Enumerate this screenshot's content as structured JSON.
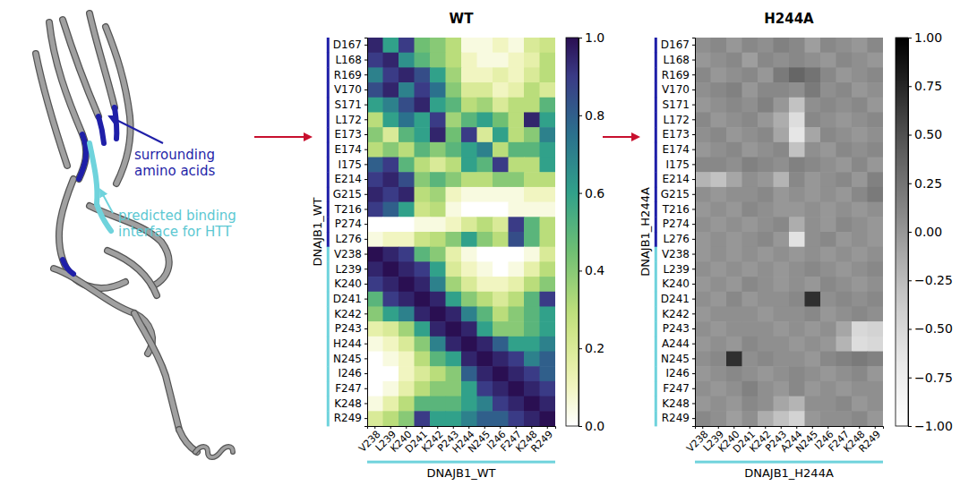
{
  "structure": {
    "labels": [
      {
        "lines": [
          "surrounding",
          "amino acids"
        ],
        "color": "#1f1fa8"
      },
      {
        "lines": [
          "predicted binding",
          "interface for HTT"
        ],
        "color": "#5cc8d2"
      }
    ]
  },
  "chart_data": [
    {
      "type": "heatmap",
      "title": "WT",
      "color": "viridis_r",
      "x_label": "DNAJB1_WT",
      "y_label": "DNAJB1_WT",
      "x": [
        "V238",
        "L239",
        "K240",
        "D241",
        "K242",
        "P243",
        "H244",
        "N245",
        "I246",
        "F247",
        "K248",
        "R249"
      ],
      "y": [
        "D167",
        "L168",
        "R169",
        "V170",
        "S171",
        "L172",
        "E173",
        "E174",
        "I175",
        "E214",
        "G215",
        "T216",
        "P274",
        "L276",
        "V238",
        "L239",
        "K240",
        "D241",
        "K242",
        "P243",
        "H244",
        "N245",
        "I246",
        "F247",
        "K248",
        "R249"
      ],
      "values": [
        [
          0.95,
          0.6,
          0.9,
          0.45,
          0.4,
          0.3,
          0.05,
          0.05,
          0.1,
          0.05,
          0.2,
          0.25
        ],
        [
          0.9,
          0.95,
          0.65,
          0.5,
          0.4,
          0.3,
          0.1,
          0.05,
          0.05,
          0.1,
          0.15,
          0.3
        ],
        [
          0.7,
          0.9,
          0.95,
          0.85,
          0.6,
          0.35,
          0.1,
          0.1,
          0.15,
          0.1,
          0.2,
          0.3
        ],
        [
          0.85,
          0.95,
          0.7,
          0.9,
          0.75,
          0.4,
          0.2,
          0.2,
          0.1,
          0.15,
          0.3,
          0.2
        ],
        [
          0.6,
          0.7,
          0.85,
          0.95,
          0.6,
          0.5,
          0.3,
          0.35,
          0.2,
          0.3,
          0.3,
          0.5
        ],
        [
          0.3,
          0.6,
          0.75,
          0.6,
          0.9,
          0.35,
          0.5,
          0.6,
          0.45,
          0.3,
          0.95,
          0.6
        ],
        [
          0.4,
          0.2,
          0.5,
          0.6,
          0.95,
          0.45,
          0.9,
          0.2,
          0.6,
          0.3,
          0.4,
          0.7
        ],
        [
          0.3,
          0.4,
          0.3,
          0.5,
          0.4,
          0.5,
          0.6,
          0.7,
          0.3,
          0.5,
          0.5,
          0.6
        ],
        [
          0.8,
          0.9,
          0.5,
          0.3,
          0.2,
          0.3,
          0.6,
          0.5,
          0.9,
          0.3,
          0.3,
          0.6
        ],
        [
          0.9,
          0.95,
          0.85,
          0.4,
          0.5,
          0.4,
          0.3,
          0.3,
          0.4,
          0.4,
          0.3,
          0.3
        ],
        [
          0.95,
          0.9,
          0.95,
          0.3,
          0.35,
          0.1,
          0.05,
          0.05,
          0.05,
          0.05,
          0.1,
          0.1
        ],
        [
          0.9,
          0.8,
          0.6,
          0.25,
          0.3,
          0.05,
          0.0,
          0.0,
          0.0,
          0.05,
          0.05,
          0.05
        ],
        [
          0.0,
          0.0,
          0.0,
          0.05,
          0.05,
          0.1,
          0.2,
          0.3,
          0.2,
          0.9,
          0.5,
          0.3
        ],
        [
          0.05,
          0.1,
          0.1,
          0.25,
          0.3,
          0.4,
          0.6,
          0.4,
          0.3,
          0.85,
          0.5,
          0.3
        ],
        [
          1.0,
          0.95,
          0.9,
          0.5,
          0.4,
          0.15,
          0.05,
          0.0,
          0.0,
          0.0,
          0.05,
          0.2
        ],
        [
          0.95,
          1.0,
          0.95,
          0.9,
          0.6,
          0.2,
          0.1,
          0.05,
          0.0,
          0.05,
          0.15,
          0.3
        ],
        [
          0.9,
          0.95,
          1.0,
          0.95,
          0.7,
          0.35,
          0.2,
          0.1,
          0.1,
          0.15,
          0.3,
          0.4
        ],
        [
          0.5,
          0.9,
          0.95,
          1.0,
          0.95,
          0.6,
          0.4,
          0.3,
          0.2,
          0.3,
          0.5,
          0.9
        ],
        [
          0.4,
          0.6,
          0.7,
          0.95,
          1.0,
          0.95,
          0.7,
          0.5,
          0.3,
          0.4,
          0.5,
          0.6
        ],
        [
          0.15,
          0.2,
          0.35,
          0.6,
          0.95,
          1.0,
          0.95,
          0.6,
          0.4,
          0.4,
          0.5,
          0.6
        ],
        [
          0.05,
          0.1,
          0.2,
          0.4,
          0.7,
          0.95,
          1.0,
          0.95,
          0.8,
          0.6,
          0.6,
          0.7
        ],
        [
          0.0,
          0.05,
          0.1,
          0.3,
          0.5,
          0.6,
          0.95,
          1.0,
          0.95,
          0.9,
          0.7,
          0.8
        ],
        [
          0.0,
          0.0,
          0.1,
          0.2,
          0.3,
          0.4,
          0.8,
          0.95,
          1.0,
          0.95,
          0.9,
          0.8
        ],
        [
          0.0,
          0.05,
          0.15,
          0.3,
          0.4,
          0.4,
          0.6,
          0.9,
          0.95,
          1.0,
          0.95,
          0.9
        ],
        [
          0.05,
          0.15,
          0.3,
          0.5,
          0.5,
          0.5,
          0.6,
          0.7,
          0.9,
          0.95,
          1.0,
          0.95
        ],
        [
          0.2,
          0.3,
          0.4,
          0.9,
          0.6,
          0.6,
          0.7,
          0.8,
          0.8,
          0.9,
          0.95,
          1.0
        ]
      ],
      "zlim": [
        0,
        1
      ],
      "zticks": [
        {
          "value": 0,
          "label": "0.0"
        },
        {
          "value": 0.2,
          "label": "0.2"
        },
        {
          "value": 0.4,
          "label": "0.4"
        },
        {
          "value": 0.6,
          "label": "0.6"
        },
        {
          "value": 0.8,
          "label": "0.8"
        },
        {
          "value": 1,
          "label": "1.0"
        }
      ]
    },
    {
      "type": "heatmap",
      "title": "H244A",
      "color": "Greys",
      "x_label": "DNAJB1_H244A",
      "y_label": "DNAJB1_H244A",
      "x": [
        "V238",
        "L239",
        "K240",
        "D241",
        "K242",
        "P243",
        "A244",
        "N245",
        "I246",
        "F247",
        "K248",
        "R249"
      ],
      "y": [
        "D167",
        "L168",
        "R169",
        "V170",
        "S171",
        "L172",
        "E173",
        "E174",
        "I175",
        "E214",
        "G215",
        "T216",
        "P274",
        "L276",
        "V238",
        "L239",
        "K240",
        "D241",
        "K242",
        "P243",
        "A244",
        "N245",
        "I246",
        "F247",
        "K248",
        "R249"
      ],
      "values": [
        [
          0.05,
          0.1,
          0,
          0.1,
          0.05,
          0.15,
          0.1,
          -0.05,
          0.1,
          0.05,
          0,
          0.1
        ],
        [
          0,
          0.05,
          0.1,
          -0.05,
          0.1,
          0.05,
          0.1,
          0.05,
          0,
          0.1,
          0.05,
          0
        ],
        [
          0.1,
          0,
          0.05,
          0.1,
          0,
          0.2,
          0.35,
          0.25,
          0.1,
          0,
          0.05,
          0.1
        ],
        [
          0.05,
          0.1,
          0.15,
          0,
          0.1,
          0.1,
          0.05,
          0.2,
          0.05,
          0.1,
          0,
          0.05
        ],
        [
          0,
          0.05,
          0.1,
          0.05,
          0.15,
          0,
          -0.3,
          0.05,
          0.1,
          0.05,
          0.1,
          0
        ],
        [
          0.1,
          0,
          0.05,
          0.1,
          0,
          -0.15,
          -0.55,
          0.1,
          0.05,
          0,
          0.05,
          0.1
        ],
        [
          0.05,
          0.1,
          0,
          0.05,
          0.1,
          -0.1,
          -0.65,
          -0.1,
          0.1,
          0.05,
          0,
          0.05
        ],
        [
          0,
          0.05,
          0.1,
          0,
          0.05,
          0.1,
          -0.3,
          0.05,
          0,
          0.1,
          0.05,
          0.1
        ],
        [
          0.1,
          0.1,
          0.05,
          0.15,
          0.1,
          0.05,
          0.15,
          0.1,
          0.05,
          0,
          0.1,
          0
        ],
        [
          -0.2,
          -0.3,
          -0.1,
          0.05,
          0,
          -0.2,
          0.1,
          0,
          0.05,
          0.1,
          0,
          0.15
        ],
        [
          0.05,
          0,
          0.05,
          0.05,
          0.1,
          0,
          0.05,
          0,
          0.05,
          0,
          0.1,
          0.2
        ],
        [
          0,
          0.05,
          0,
          0.1,
          0.05,
          0,
          0,
          0.05,
          0,
          0.05,
          0,
          0.05
        ],
        [
          0.05,
          0,
          0.05,
          0,
          0.05,
          0.1,
          -0.15,
          0.05,
          0,
          0.1,
          0.05,
          0
        ],
        [
          0,
          0.05,
          0,
          0.05,
          0.1,
          0,
          -0.6,
          0.05,
          0.1,
          0,
          0.05,
          0
        ],
        [
          0,
          0.05,
          0,
          0.05,
          0,
          0.05,
          0,
          0.05,
          0,
          0.05,
          0,
          0.05
        ],
        [
          0.05,
          0,
          0.05,
          0,
          0.05,
          0,
          0.05,
          0.1,
          0.05,
          0,
          0.05,
          0.1
        ],
        [
          0,
          0.05,
          0,
          0.1,
          0.05,
          0,
          0.05,
          0,
          0.1,
          0.05,
          0,
          0.05
        ],
        [
          0.05,
          0,
          0.1,
          0,
          0.05,
          0.05,
          0.1,
          0.7,
          0.05,
          0.1,
          0.05,
          0.1
        ],
        [
          0,
          0.05,
          0.05,
          0.05,
          0,
          0.05,
          0.05,
          0.1,
          0,
          0.05,
          0.1,
          0.05
        ],
        [
          0.05,
          0,
          0.05,
          0.05,
          0.05,
          0,
          0.05,
          0,
          0.05,
          -0.1,
          -0.5,
          -0.45
        ],
        [
          0,
          0.05,
          0,
          0.1,
          0.05,
          0.05,
          0,
          0.05,
          0,
          -0.2,
          -0.55,
          -0.5
        ],
        [
          0.05,
          0.1,
          0.7,
          0.05,
          0.1,
          0.05,
          0.05,
          0,
          0.1,
          0.15,
          0.2,
          0.15
        ],
        [
          0,
          0.05,
          0.1,
          0.05,
          0,
          0.05,
          0.1,
          0.05,
          0,
          0.05,
          0.1,
          0
        ],
        [
          0.05,
          0,
          0.05,
          0.15,
          0.05,
          0,
          0.1,
          0,
          0.05,
          0,
          0.05,
          0.05
        ],
        [
          0,
          0.05,
          0,
          0.1,
          0.05,
          -0.1,
          -0.2,
          0.05,
          0.05,
          0.1,
          0,
          0.05
        ],
        [
          0.1,
          0.05,
          -0.05,
          0.05,
          -0.15,
          -0.3,
          -0.45,
          0,
          0.05,
          0.05,
          0.1,
          0
        ]
      ],
      "zlim": [
        -1,
        1
      ],
      "zticks": [
        {
          "value": 1,
          "label": "1.00"
        },
        {
          "value": 0.75,
          "label": "0.75"
        },
        {
          "value": 0.5,
          "label": "0.50"
        },
        {
          "value": 0.25,
          "label": "0.25"
        },
        {
          "value": 0,
          "label": "0.00"
        },
        {
          "value": -0.25,
          "label": "−0.25"
        },
        {
          "value": -0.5,
          "label": "−0.50"
        },
        {
          "value": -0.75,
          "label": "−0.75"
        },
        {
          "value": -1,
          "label": "−1.00"
        }
      ]
    }
  ]
}
